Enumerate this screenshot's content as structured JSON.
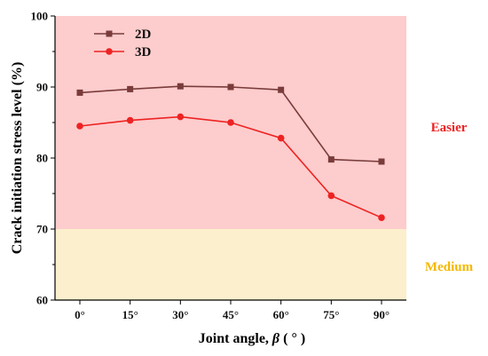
{
  "chart_data": {
    "type": "line",
    "categories": [
      "0°",
      "15°",
      "30°",
      "45°",
      "60°",
      "75°",
      "90°"
    ],
    "series": [
      {
        "name": "2D",
        "values": [
          89.2,
          89.7,
          90.1,
          90.0,
          89.6,
          79.8,
          79.5
        ],
        "color": "#7a3b3b",
        "marker": "square"
      },
      {
        "name": "3D",
        "values": [
          84.5,
          85.3,
          85.8,
          85.0,
          82.8,
          74.7,
          71.6
        ],
        "color": "#ee2222",
        "marker": "circle"
      }
    ],
    "xlabel_prefix": "Joint angle, ",
    "xlabel_symbol": "β",
    "xlabel_suffix": " ( ° )",
    "ylabel": "Crack initiation stress level (%)",
    "ylim": [
      60,
      100
    ],
    "yticks": [
      60,
      70,
      80,
      90,
      100
    ],
    "regions": [
      {
        "label": "Easier",
        "from": 70,
        "to": 100,
        "fill": "#fdcccc",
        "text_color": "#ee2222"
      },
      {
        "label": "Medium",
        "from": 60,
        "to": 70,
        "fill": "#fcefcd",
        "text_color": "#f5b800"
      }
    ],
    "legend_position": "top-left",
    "grid": false
  }
}
